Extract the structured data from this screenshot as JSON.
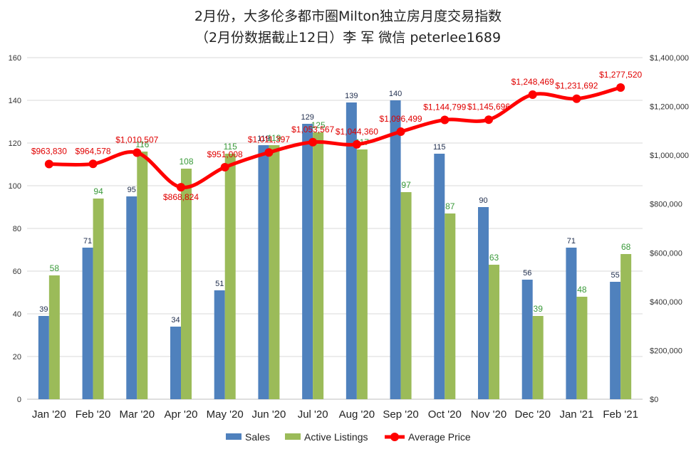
{
  "chart_data": {
    "type": "bar",
    "title": "2月份，大多伦多都市圈Milton独立房月度交易指数",
    "subtitle": "（2月份数据截止12日）李 军  微信  peterlee1689",
    "categories": [
      "Jan '20",
      "Feb '20",
      "Mar '20",
      "Apr '20",
      "May '20",
      "Jun '20",
      "Jul '20",
      "Aug '20",
      "Sep '20",
      "Oct '20",
      "Nov '20",
      "Dec '20",
      "Jan '21",
      "Feb '21"
    ],
    "series": [
      {
        "name": "Sales",
        "type": "bar",
        "axis": "left",
        "color": "#4F81BD",
        "label_color": "#1F2D4D",
        "values": [
          39,
          71,
          95,
          34,
          51,
          119,
          129,
          139,
          140,
          115,
          90,
          56,
          71,
          55
        ],
        "labels": [
          "39",
          "71",
          "95",
          "34",
          "51",
          "119",
          "129",
          "139",
          "140",
          "115",
          "90",
          "56",
          "71",
          "55"
        ]
      },
      {
        "name": "Active Listings",
        "type": "bar",
        "axis": "left",
        "color": "#9BBB59",
        "label_color": "#3A9A3A",
        "values": [
          58,
          94,
          116,
          108,
          115,
          119,
          125,
          117,
          97,
          87,
          63,
          39,
          48,
          68
        ],
        "labels": [
          "58",
          "94",
          "116",
          "108",
          "115",
          "119",
          "125",
          "117",
          "97",
          "87",
          "63",
          "39",
          "48",
          "68"
        ]
      },
      {
        "name": "Average Price",
        "type": "line",
        "axis": "right",
        "color": "#FF0000",
        "label_color": "#E00000",
        "values": [
          963830,
          964578,
          1010507,
          868824,
          951008,
          1011397,
          1053567,
          1044360,
          1096499,
          1144799,
          1145696,
          1248469,
          1231692,
          1277520
        ],
        "labels": [
          "$963,830",
          "$964,578",
          "$1,010,507",
          "$868,824",
          "$951,008",
          "$1,011,397",
          "$1,053,567",
          "$1,044,360",
          "$1,096,499",
          "$1,144,799",
          "$1,145,696",
          "$1,248,469",
          "$1,231,692",
          "$1,277,520"
        ]
      }
    ],
    "y_left": {
      "range": [
        0,
        160
      ],
      "ticks": [
        "0",
        "20",
        "40",
        "60",
        "80",
        "100",
        "120",
        "140",
        "160"
      ]
    },
    "y_right": {
      "range": [
        0,
        1400000
      ],
      "ticks": [
        "$0",
        "$200,000",
        "$400,000",
        "$600,000",
        "$800,000",
        "$1,000,000",
        "$1,200,000",
        "$1,400,000"
      ]
    },
    "grid": true,
    "legend_position": "bottom"
  }
}
